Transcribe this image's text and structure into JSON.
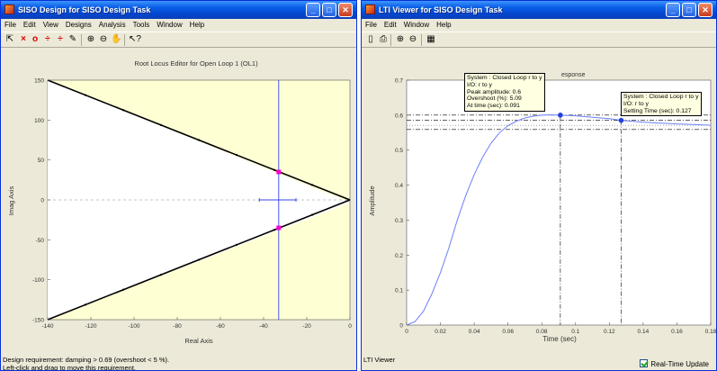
{
  "siso_window": {
    "title": "SISO Design for SISO Design Task",
    "menu": [
      "File",
      "Edit",
      "View",
      "Designs",
      "Analysis",
      "Tools",
      "Window",
      "Help"
    ],
    "plot": {
      "title": "Root Locus Editor for Open Loop 1 (OL1)",
      "xlabel": "Real Axis",
      "ylabel": "Imag Axis",
      "xticks": [
        "-140",
        "-120",
        "-100",
        "-80",
        "-60",
        "-40",
        "-20",
        "0"
      ],
      "yticks": [
        "150",
        "100",
        "50",
        "0",
        "-50",
        "-100",
        "-150"
      ]
    },
    "status_line1": "Design requirement: damping > 0.69 (overshoot < 5 %).",
    "status_line2": "Left-click and drag to move this requirement."
  },
  "lti_window": {
    "title": "LTI Viewer for SISO Design Task",
    "menu": [
      "File",
      "Edit",
      "Window",
      "Help"
    ],
    "plot": {
      "title_fragment": "esponse",
      "xlabel": "Time (sec)",
      "ylabel": "Amplitude",
      "xticks": [
        "0",
        "0.02",
        "0.04",
        "0.06",
        "0.08",
        "0.1",
        "0.12",
        "0.14",
        "0.16",
        "0.18"
      ],
      "yticks": [
        "0.7",
        "0.6",
        "0.5",
        "0.4",
        "0.3",
        "0.2",
        "0.1",
        "0"
      ]
    },
    "tip_peak": [
      "System : Closed Loop r to y",
      "I/O: r to y",
      "Peak amplitude: 0.6",
      "Overshoot (%): 5.09",
      "At time (sec): 0.091"
    ],
    "tip_settling": [
      "System : Closed Loop r to y",
      "I/O: r to y",
      "Setting Time (sec): 0.127"
    ],
    "status": "LTI Viewer",
    "realtime_label": "Real-Time Update",
    "realtime_checked": true
  },
  "colors": {
    "titlebar": "#0a5fe6",
    "locus_region": "#ffffd4",
    "response_line": "#6b7ff5",
    "marker_pole": "#ff00cc",
    "marker_point": "#2040e0"
  },
  "chart_data": [
    {
      "type": "line",
      "title": "Root Locus Editor for Open Loop 1 (OL1)",
      "xlabel": "Real Axis",
      "ylabel": "Imag Axis",
      "xlim": [
        -140,
        0
      ],
      "ylim": [
        -150,
        150
      ],
      "series": [
        {
          "x": [
            -140,
            0
          ],
          "y": [
            150,
            0
          ]
        },
        {
          "x": [
            -140,
            0
          ],
          "y": [
            -150,
            0
          ]
        }
      ],
      "closed_loop_poles": [
        [
          -33,
          35
        ],
        [
          -33,
          -35
        ]
      ]
    },
    {
      "type": "line",
      "title": "esponse",
      "xlabel": "Time (sec)",
      "ylabel": "Amplitude",
      "xlim": [
        0,
        0.18
      ],
      "ylim": [
        0,
        0.7
      ],
      "series": [
        {
          "x": [
            0,
            0.005,
            0.01,
            0.015,
            0.02,
            0.025,
            0.03,
            0.035,
            0.04,
            0.045,
            0.05,
            0.055,
            0.06,
            0.065,
            0.07,
            0.075,
            0.08,
            0.085,
            0.091,
            0.1,
            0.11,
            0.12,
            0.127,
            0.14,
            0.15,
            0.16,
            0.17,
            0.18
          ],
          "y": [
            0,
            0.01,
            0.04,
            0.09,
            0.15,
            0.22,
            0.3,
            0.37,
            0.43,
            0.48,
            0.52,
            0.55,
            0.57,
            0.583,
            0.592,
            0.597,
            0.6,
            0.601,
            0.6,
            0.598,
            0.594,
            0.59,
            0.585,
            0.58,
            0.577,
            0.575,
            0.573,
            0.571
          ]
        }
      ],
      "peak": {
        "x": 0.091,
        "y": 0.6
      },
      "settling": {
        "x": 0.127,
        "y": 0.585
      }
    }
  ]
}
